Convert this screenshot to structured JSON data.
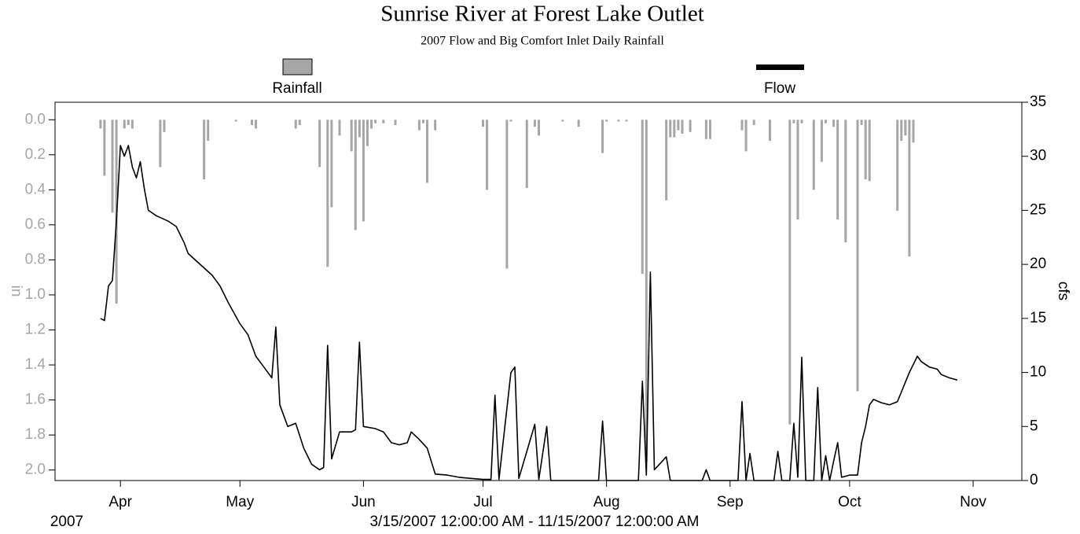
{
  "chart_data": {
    "type": "combo",
    "title": "Sunrise River at Forest Lake Outlet",
    "subtitle": "2007 Flow and Big Comfort Inlet Daily Rainfall",
    "ylabel": "in",
    "y2label": "cfs",
    "year_label": "2007",
    "range_label": "3/15/2007 12:00:00 AM - 11/15/2007 12:00:00 AM",
    "xlim": [
      "2007-03-15",
      "2007-11-15"
    ],
    "xticks": [
      {
        "value": "2007-04-01",
        "label": "Apr"
      },
      {
        "value": "2007-05-01",
        "label": "May"
      },
      {
        "value": "2007-06-01",
        "label": "Jun"
      },
      {
        "value": "2007-07-01",
        "label": "Jul"
      },
      {
        "value": "2007-08-01",
        "label": "Aug"
      },
      {
        "value": "2007-09-01",
        "label": "Sep"
      },
      {
        "value": "2007-10-01",
        "label": "Oct"
      },
      {
        "value": "2007-11-01",
        "label": "Nov"
      }
    ],
    "ylim": [
      2.06,
      -0.1
    ],
    "yticks": [
      {
        "value": 0,
        "label": "0.0"
      },
      0.2,
      0.4,
      0.6,
      0.8,
      {
        "value": 1,
        "label": "1.0"
      },
      1.2,
      1.4,
      1.6,
      1.8,
      {
        "value": 2,
        "label": "2.0"
      }
    ],
    "y2lim": [
      0,
      35
    ],
    "y2ticks": [
      0,
      5,
      10,
      15,
      20,
      25,
      30,
      35
    ],
    "series": [
      {
        "name": "Rainfall",
        "type": "bar",
        "color": "#a6a6a6",
        "x": [
          "2007-03-27",
          "2007-03-28",
          "2007-03-30",
          "2007-03-31",
          "2007-04-02",
          "2007-04-03",
          "2007-04-04",
          "2007-04-11",
          "2007-04-12",
          "2007-04-22",
          "2007-04-23",
          "2007-04-30",
          "2007-05-04",
          "2007-05-05",
          "2007-05-15",
          "2007-05-16",
          "2007-05-21",
          "2007-05-23",
          "2007-05-24",
          "2007-05-26",
          "2007-05-29",
          "2007-05-30",
          "2007-05-31",
          "2007-06-01",
          "2007-06-02",
          "2007-06-03",
          "2007-06-04",
          "2007-06-06",
          "2007-06-09",
          "2007-06-15",
          "2007-06-16",
          "2007-06-17",
          "2007-06-19",
          "2007-07-01",
          "2007-07-02",
          "2007-07-07",
          "2007-07-08",
          "2007-07-12",
          "2007-07-14",
          "2007-07-15",
          "2007-07-21",
          "2007-07-25",
          "2007-07-31",
          "2007-08-01",
          "2007-08-04",
          "2007-08-06",
          "2007-08-10",
          "2007-08-11",
          "2007-08-16",
          "2007-08-17",
          "2007-08-18",
          "2007-08-19",
          "2007-08-20",
          "2007-08-22",
          "2007-08-26",
          "2007-08-27",
          "2007-09-04",
          "2007-09-05",
          "2007-09-07",
          "2007-09-11",
          "2007-09-16",
          "2007-09-17",
          "2007-09-18",
          "2007-09-19",
          "2007-09-22",
          "2007-09-24",
          "2007-09-25",
          "2007-09-27",
          "2007-09-28",
          "2007-09-30",
          "2007-10-03",
          "2007-10-04",
          "2007-10-05",
          "2007-10-06",
          "2007-10-13",
          "2007-10-14",
          "2007-10-15",
          "2007-10-16",
          "2007-10-17"
        ],
        "values": [
          0.05,
          0.32,
          0.53,
          1.05,
          0.05,
          0.03,
          0.05,
          0.27,
          0.07,
          0.34,
          0.12,
          0.01,
          0.03,
          0.05,
          0.05,
          0.03,
          0.27,
          0.84,
          0.5,
          0.09,
          0.18,
          0.63,
          0.1,
          0.58,
          0.15,
          0.05,
          0.02,
          0.02,
          0.03,
          0.06,
          0.02,
          0.36,
          0.06,
          0.04,
          0.4,
          0.85,
          0.01,
          0.39,
          0.04,
          0.09,
          0.01,
          0.04,
          0.19,
          0.01,
          0.01,
          0.01,
          0.88,
          1.95,
          0.46,
          0.1,
          0.1,
          0.06,
          0.08,
          0.07,
          0.11,
          0.11,
          0.06,
          0.18,
          0.03,
          0.12,
          1.74,
          0.02,
          0.57,
          0.02,
          0.4,
          0.24,
          0.02,
          0.04,
          0.57,
          0.7,
          1.55,
          0.03,
          0.34,
          0.35,
          0.52,
          0.12,
          0.09,
          0.78,
          0.13
        ]
      },
      {
        "name": "Flow",
        "type": "line",
        "color": "#000000",
        "axis": "y2",
        "x": [
          "2007-03-27",
          "2007-03-28",
          "2007-03-29",
          "2007-03-30",
          "2007-03-31",
          "2007-04-01",
          "2007-04-02",
          "2007-04-03",
          "2007-04-04",
          "2007-04-05",
          "2007-04-06",
          "2007-04-07",
          "2007-04-08",
          "2007-04-10",
          "2007-04-13",
          "2007-04-15",
          "2007-04-17",
          "2007-04-18",
          "2007-04-21",
          "2007-04-24",
          "2007-04-26",
          "2007-04-28",
          "2007-05-01",
          "2007-05-03",
          "2007-05-05",
          "2007-05-07",
          "2007-05-09",
          "2007-05-10",
          "2007-05-11",
          "2007-05-13",
          "2007-05-15",
          "2007-05-17",
          "2007-05-19",
          "2007-05-21",
          "2007-05-22",
          "2007-05-23",
          "2007-05-24",
          "2007-05-26",
          "2007-05-29",
          "2007-05-30",
          "2007-05-31",
          "2007-06-01",
          "2007-06-04",
          "2007-06-06",
          "2007-06-08",
          "2007-06-10",
          "2007-06-12",
          "2007-06-13",
          "2007-06-15",
          "2007-06-17",
          "2007-06-19",
          "2007-06-22",
          "2007-06-25",
          "2007-06-28",
          "2007-07-01",
          "2007-07-03",
          "2007-07-04",
          "2007-07-05",
          "2007-07-08",
          "2007-07-09",
          "2007-07-10",
          "2007-07-14",
          "2007-07-15",
          "2007-07-17",
          "2007-07-18",
          "2007-07-30",
          "2007-07-31",
          "2007-08-01",
          "2007-08-09",
          "2007-08-10",
          "2007-08-11",
          "2007-08-12",
          "2007-08-13",
          "2007-08-16",
          "2007-08-17",
          "2007-08-25",
          "2007-08-26",
          "2007-08-27",
          "2007-09-03",
          "2007-09-04",
          "2007-09-05",
          "2007-09-06",
          "2007-09-07",
          "2007-09-12",
          "2007-09-13",
          "2007-09-14",
          "2007-09-16",
          "2007-09-17",
          "2007-09-18",
          "2007-09-19",
          "2007-09-20",
          "2007-09-22",
          "2007-09-23",
          "2007-09-24",
          "2007-09-25",
          "2007-09-26",
          "2007-09-27",
          "2007-09-28",
          "2007-09-29",
          "2007-10-01",
          "2007-10-03",
          "2007-10-04",
          "2007-10-05",
          "2007-10-06",
          "2007-10-07",
          "2007-10-09",
          "2007-10-11",
          "2007-10-13",
          "2007-10-14",
          "2007-10-16",
          "2007-10-18",
          "2007-10-19",
          "2007-10-21",
          "2007-10-23",
          "2007-10-24",
          "2007-10-26",
          "2007-10-28"
        ],
        "values": [
          15.0,
          14.8,
          18,
          18.5,
          24,
          31,
          30,
          31,
          29,
          28,
          29.5,
          27,
          25,
          24.5,
          24,
          23.5,
          22,
          21,
          20,
          19,
          18,
          16.5,
          14.5,
          13.5,
          11.5,
          10.5,
          9.5,
          14.2,
          7,
          5,
          5.3,
          3,
          1.5,
          1,
          1.2,
          12.5,
          2,
          4.5,
          4.5,
          4.7,
          12.8,
          5,
          4.8,
          4.5,
          3.5,
          3.3,
          3.5,
          4.5,
          3.8,
          3.0,
          0.6,
          0.5,
          0.3,
          0.2,
          0.1,
          0.1,
          7.9,
          0.1,
          10.0,
          10.5,
          0.2,
          5.2,
          0.1,
          5.0,
          0,
          0,
          5.5,
          0,
          0,
          9.2,
          0.5,
          19.3,
          1,
          2.2,
          0,
          0,
          1,
          0,
          0,
          7.3,
          0,
          2.5,
          0,
          0,
          2.7,
          0,
          0,
          5.3,
          0.3,
          11.4,
          0,
          0,
          8.6,
          0,
          2.3,
          0,
          1.8,
          3.5,
          0.3,
          0.5,
          0.5,
          3.5,
          5,
          7,
          7.5,
          7.2,
          7,
          7.3,
          8.2,
          10,
          11.5,
          11,
          10.5,
          10.3,
          9.8,
          9.5,
          9.3
        ]
      }
    ]
  }
}
